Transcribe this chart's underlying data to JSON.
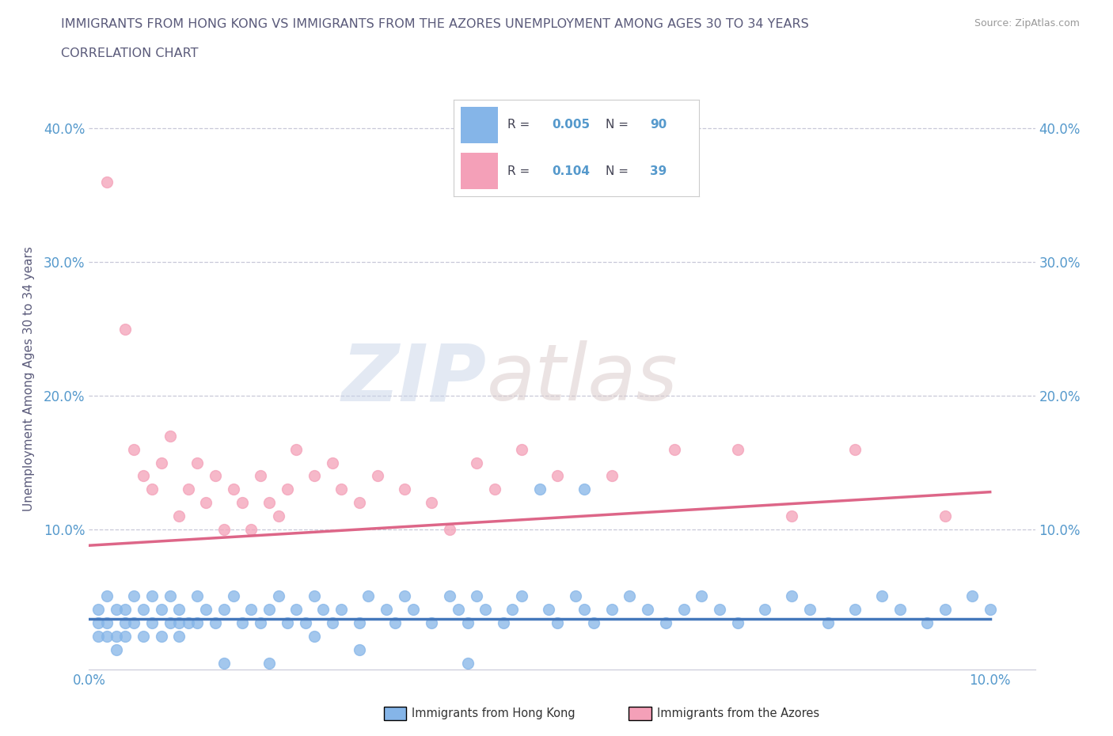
{
  "title_line1": "IMMIGRANTS FROM HONG KONG VS IMMIGRANTS FROM THE AZORES UNEMPLOYMENT AMONG AGES 30 TO 34 YEARS",
  "title_line2": "CORRELATION CHART",
  "title_color": "#5a5a7a",
  "source_text": "Source: ZipAtlas.com",
  "ylabel": "Unemployment Among Ages 30 to 34 years",
  "xlim": [
    0.0,
    0.105
  ],
  "ylim": [
    -0.005,
    0.43
  ],
  "ytick_vals": [
    0.0,
    0.1,
    0.2,
    0.3,
    0.4
  ],
  "xtick_vals": [
    0.0,
    0.02,
    0.04,
    0.06,
    0.08,
    0.1
  ],
  "watermark_zip": "ZIP",
  "watermark_atlas": "atlas",
  "hk_color": "#85b5e8",
  "hk_edge_color": "#6699cc",
  "azores_color": "#f4a0b8",
  "azores_edge_color": "#e87090",
  "hk_line_color": "#4477bb",
  "azores_line_color": "#dd6688",
  "grid_color": "#c8c8d8",
  "background_color": "#ffffff",
  "tick_color": "#5599cc",
  "title_font_color": "#5a5a7a",
  "legend_r1_val": "0.005",
  "legend_n1_val": "90",
  "legend_r2_val": "0.104",
  "legend_n2_val": "39",
  "hk_x": [
    0.001,
    0.001,
    0.001,
    0.002,
    0.002,
    0.002,
    0.003,
    0.003,
    0.003,
    0.004,
    0.004,
    0.004,
    0.005,
    0.005,
    0.006,
    0.006,
    0.007,
    0.007,
    0.008,
    0.008,
    0.009,
    0.009,
    0.01,
    0.01,
    0.011,
    0.012,
    0.012,
    0.013,
    0.014,
    0.015,
    0.016,
    0.017,
    0.018,
    0.019,
    0.02,
    0.021,
    0.022,
    0.023,
    0.024,
    0.025,
    0.026,
    0.027,
    0.028,
    0.03,
    0.031,
    0.033,
    0.034,
    0.035,
    0.036,
    0.038,
    0.04,
    0.041,
    0.042,
    0.043,
    0.044,
    0.046,
    0.047,
    0.048,
    0.05,
    0.051,
    0.052,
    0.054,
    0.055,
    0.056,
    0.058,
    0.06,
    0.062,
    0.064,
    0.066,
    0.068,
    0.07,
    0.072,
    0.075,
    0.078,
    0.08,
    0.082,
    0.085,
    0.088,
    0.09,
    0.093,
    0.095,
    0.098,
    0.1,
    0.055,
    0.042,
    0.03,
    0.025,
    0.02,
    0.015,
    0.01
  ],
  "hk_y": [
    0.04,
    0.03,
    0.02,
    0.05,
    0.03,
    0.02,
    0.04,
    0.02,
    0.01,
    0.04,
    0.03,
    0.02,
    0.05,
    0.03,
    0.04,
    0.02,
    0.05,
    0.03,
    0.04,
    0.02,
    0.05,
    0.03,
    0.04,
    0.02,
    0.03,
    0.05,
    0.03,
    0.04,
    0.03,
    0.04,
    0.05,
    0.03,
    0.04,
    0.03,
    0.04,
    0.05,
    0.03,
    0.04,
    0.03,
    0.05,
    0.04,
    0.03,
    0.04,
    0.03,
    0.05,
    0.04,
    0.03,
    0.05,
    0.04,
    0.03,
    0.05,
    0.04,
    0.03,
    0.05,
    0.04,
    0.03,
    0.04,
    0.05,
    0.13,
    0.04,
    0.03,
    0.05,
    0.04,
    0.03,
    0.04,
    0.05,
    0.04,
    0.03,
    0.04,
    0.05,
    0.04,
    0.03,
    0.04,
    0.05,
    0.04,
    0.03,
    0.04,
    0.05,
    0.04,
    0.03,
    0.04,
    0.05,
    0.04,
    0.13,
    0.0,
    0.01,
    0.02,
    0.0,
    0.0,
    0.03
  ],
  "az_x": [
    0.002,
    0.004,
    0.005,
    0.006,
    0.007,
    0.008,
    0.009,
    0.01,
    0.011,
    0.012,
    0.013,
    0.014,
    0.015,
    0.016,
    0.017,
    0.018,
    0.019,
    0.02,
    0.021,
    0.022,
    0.023,
    0.025,
    0.027,
    0.028,
    0.03,
    0.032,
    0.035,
    0.038,
    0.04,
    0.043,
    0.045,
    0.048,
    0.052,
    0.058,
    0.065,
    0.072,
    0.078,
    0.085,
    0.095
  ],
  "az_y": [
    0.36,
    0.25,
    0.16,
    0.14,
    0.13,
    0.15,
    0.17,
    0.11,
    0.13,
    0.15,
    0.12,
    0.14,
    0.1,
    0.13,
    0.12,
    0.1,
    0.14,
    0.12,
    0.11,
    0.13,
    0.16,
    0.14,
    0.15,
    0.13,
    0.12,
    0.14,
    0.13,
    0.12,
    0.1,
    0.15,
    0.13,
    0.16,
    0.14,
    0.14,
    0.16,
    0.16,
    0.11,
    0.16,
    0.11
  ],
  "hk_line_x": [
    0.0,
    0.1
  ],
  "hk_line_y": [
    0.033,
    0.033
  ],
  "az_line_x": [
    0.0,
    0.1
  ],
  "az_line_y": [
    0.088,
    0.128
  ]
}
